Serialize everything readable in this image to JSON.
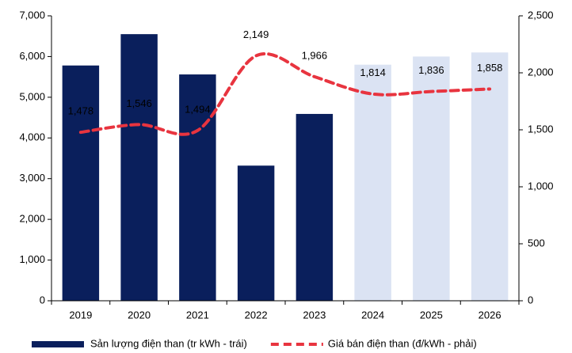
{
  "chart_data": {
    "type": "bar_line",
    "categories": [
      "2019",
      "2020",
      "2021",
      "2022",
      "2023",
      "2024",
      "2025",
      "2026"
    ],
    "series": [
      {
        "name": "Sản lượng điện than (tr kWh - trái)",
        "type": "bar",
        "color": "#0a1f5c",
        "colors": [
          "#0a1f5c",
          "#0a1f5c",
          "#0a1f5c",
          "#0a1f5c",
          "#0a1f5c",
          "#dbe3f3",
          "#dbe3f3",
          "#dbe3f3"
        ],
        "values": [
          5780,
          6550,
          5560,
          3320,
          4590,
          5800,
          6000,
          6100
        ]
      },
      {
        "name": "Giá bán điện than (đ/kWh - phải)",
        "type": "line",
        "axis": "y2",
        "color": "#e8343f",
        "values": [
          1478,
          1546,
          1494,
          2149,
          1966,
          1814,
          1836,
          1858
        ],
        "value_labels": [
          "1,478",
          "1,546",
          "1,494",
          "2,149",
          "1,966",
          "1,814",
          "1,836",
          "1,858"
        ]
      }
    ],
    "ylim": [
      0,
      7000
    ],
    "yticks": [
      0,
      {
        "value": 1000,
        "label": "1,000"
      },
      {
        "value": 2000,
        "label": "2,000"
      },
      {
        "value": 3000,
        "label": "3,000"
      },
      {
        "value": 4000,
        "label": "4,000"
      },
      {
        "value": 5000,
        "label": "5,000"
      },
      {
        "value": 6000,
        "label": "6,000"
      },
      {
        "value": 7000,
        "label": "7,000"
      }
    ],
    "y2lim": [
      0,
      2500
    ],
    "y2ticks": [
      0,
      500,
      {
        "value": 1000,
        "label": "1,000"
      },
      {
        "value": 1500,
        "label": "1,500"
      },
      {
        "value": 2000,
        "label": "2,000"
      },
      {
        "value": 2500,
        "label": "2,500"
      }
    ],
    "legend": "bottom"
  }
}
